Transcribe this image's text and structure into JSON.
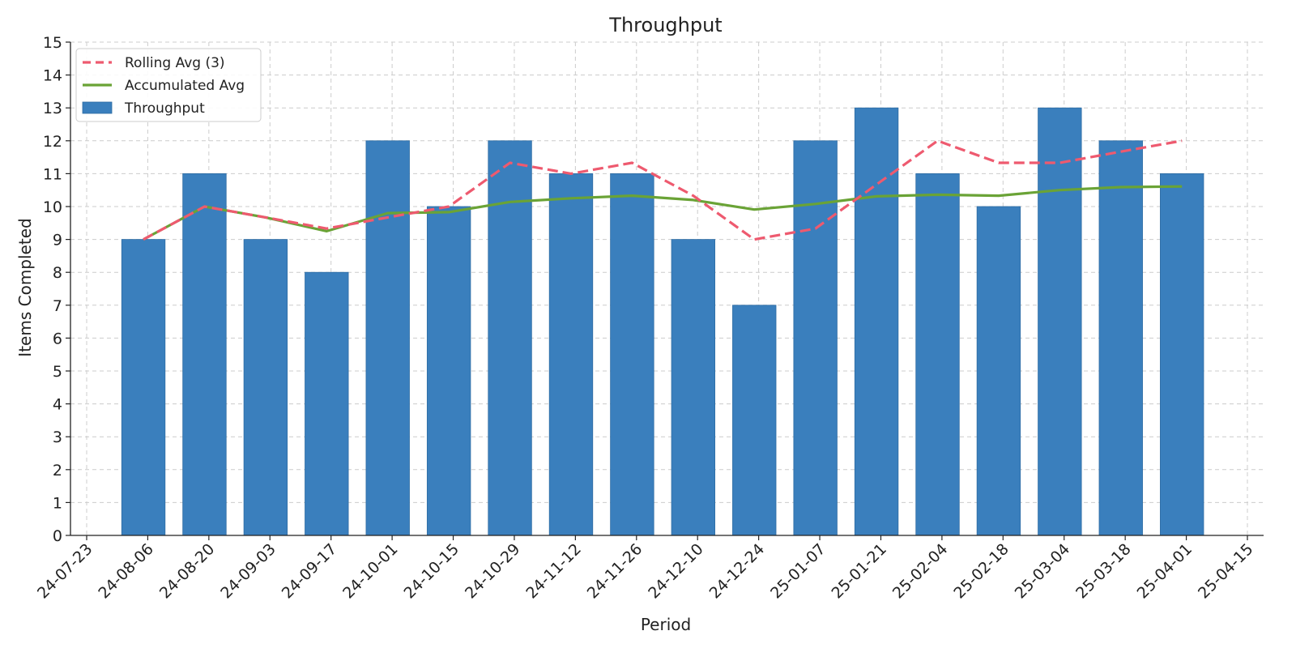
{
  "chart_data": {
    "type": "bar",
    "title": "Throughput",
    "xlabel": "Period",
    "ylabel": "Items Completed",
    "ylim": [
      0,
      15
    ],
    "yticks": [
      0,
      1,
      2,
      3,
      4,
      5,
      6,
      7,
      8,
      9,
      10,
      11,
      12,
      13,
      14,
      15
    ],
    "xlim": [
      "2024-07-23",
      "2025-04-15"
    ],
    "xticks": [
      "24-07-23",
      "24-08-06",
      "24-08-20",
      "24-09-03",
      "24-09-17",
      "24-10-01",
      "24-10-15",
      "24-10-29",
      "24-11-12",
      "24-11-26",
      "24-12-10",
      "24-12-24",
      "25-01-07",
      "25-01-21",
      "25-02-04",
      "25-02-18",
      "25-03-04",
      "25-03-18",
      "25-04-01",
      "25-04-15"
    ],
    "x": [
      "2024-08-05",
      "2024-08-19",
      "2024-09-02",
      "2024-09-16",
      "2024-09-30",
      "2024-10-14",
      "2024-10-28",
      "2024-11-11",
      "2024-11-25",
      "2024-12-09",
      "2024-12-23",
      "2025-01-06",
      "2025-01-20",
      "2025-02-03",
      "2025-02-17",
      "2025-03-03",
      "2025-03-17",
      "2025-03-31"
    ],
    "grid": true,
    "legend_position": "top-left",
    "series": [
      {
        "name": "Throughput",
        "kind": "bar",
        "color": "#3a7fbd",
        "values": [
          9,
          11,
          9,
          8,
          12,
          10,
          12,
          11,
          11,
          9,
          7,
          12,
          13,
          11,
          10,
          13,
          12,
          11
        ]
      },
      {
        "name": "Rolling Avg (3)",
        "kind": "line",
        "style": "dashed",
        "color": "#ee5a6f",
        "values": [
          9.0,
          10.0,
          9.67,
          9.33,
          9.67,
          10.0,
          11.33,
          11.0,
          11.33,
          10.33,
          9.0,
          9.33,
          10.67,
          12.0,
          11.33,
          11.33,
          11.67,
          12.0
        ]
      },
      {
        "name": "Accumulated Avg",
        "kind": "line",
        "style": "solid",
        "color": "#6aa336",
        "values": [
          9.0,
          10.0,
          9.67,
          9.25,
          9.8,
          9.83,
          10.14,
          10.25,
          10.33,
          10.2,
          9.91,
          10.08,
          10.31,
          10.36,
          10.33,
          10.5,
          10.59,
          10.61
        ]
      }
    ],
    "legend_order": [
      "Rolling Avg (3)",
      "Accumulated Avg",
      "Throughput"
    ]
  }
}
